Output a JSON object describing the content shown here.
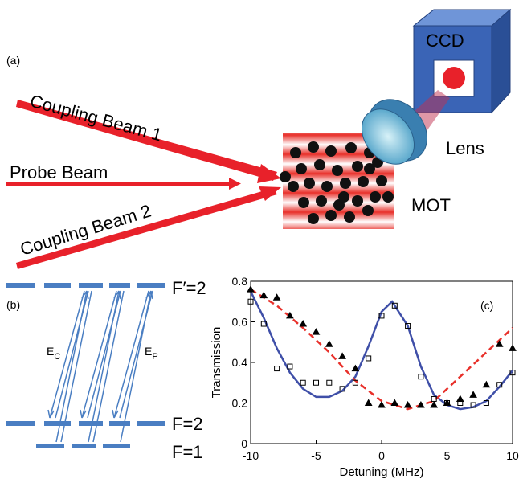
{
  "panel_a": {
    "label": "(a)",
    "beam_1": "Coupling Beam 1",
    "probe": "Probe Beam",
    "beam_2": "Coupling Beam 2",
    "ccd": "CCD",
    "lens": "Lens",
    "mot": "MOT"
  },
  "panel_b": {
    "label": "(b)",
    "level_top": "F′=2",
    "level_mid": "F=2",
    "level_bottom": "F=1",
    "coupling": {
      "main": "E",
      "sub": "C"
    },
    "probe": {
      "main": "E",
      "sub": "P"
    }
  },
  "chart_data": {
    "type": "line",
    "panel_label": "(c)",
    "x_label": "Detuning (MHz)",
    "y_label": "Transmission",
    "xlim": [
      -10,
      10
    ],
    "xticks": [
      -10,
      -5,
      0,
      5,
      10
    ],
    "ylim": [
      0,
      0.8
    ],
    "yticks": [
      0,
      0.2,
      0.4,
      0.6,
      0.8
    ],
    "series": [
      {
        "color": "#3f4fa8",
        "style": "solid",
        "x": [
          -10,
          -9,
          -8,
          -7,
          -6,
          -5,
          -4,
          -3,
          -2,
          -1,
          0,
          0.8,
          2,
          3,
          4,
          5,
          6,
          7,
          8,
          9,
          10
        ],
        "values": [
          0.75,
          0.62,
          0.47,
          0.35,
          0.27,
          0.23,
          0.23,
          0.26,
          0.33,
          0.48,
          0.65,
          0.7,
          0.58,
          0.38,
          0.24,
          0.19,
          0.17,
          0.18,
          0.21,
          0.28,
          0.36
        ]
      },
      {
        "color": "#e8302a",
        "style": "dashed",
        "x": [
          -10,
          -8,
          -6,
          -4,
          -2,
          0,
          2,
          4,
          6,
          8,
          10
        ],
        "values": [
          0.76,
          0.68,
          0.57,
          0.45,
          0.31,
          0.21,
          0.17,
          0.21,
          0.33,
          0.45,
          0.57
        ]
      },
      {
        "color": "#000000",
        "marker": "square",
        "x": [
          -10,
          -9,
          -8,
          -7,
          -6,
          -5,
          -4,
          -3,
          -2,
          -1,
          0,
          1,
          2,
          3,
          4,
          5,
          6,
          7,
          8,
          9,
          10
        ],
        "values": [
          0.7,
          0.59,
          0.37,
          0.38,
          0.3,
          0.3,
          0.3,
          0.27,
          0.3,
          0.42,
          0.63,
          0.68,
          0.58,
          0.33,
          0.22,
          0.2,
          0.2,
          0.19,
          0.2,
          0.29,
          0.35
        ]
      },
      {
        "color": "#000000",
        "marker": "triangle",
        "x": [
          -10,
          -9,
          -8,
          -7,
          -6,
          -5,
          -4,
          -3,
          -2,
          -1,
          0,
          1,
          2,
          3,
          4,
          5,
          6,
          7,
          8,
          9,
          10
        ],
        "values": [
          0.76,
          0.73,
          0.72,
          0.63,
          0.59,
          0.55,
          0.49,
          0.43,
          0.37,
          0.2,
          0.19,
          0.2,
          0.19,
          0.19,
          0.19,
          0.2,
          0.22,
          0.24,
          0.29,
          0.49,
          0.47
        ]
      }
    ]
  }
}
